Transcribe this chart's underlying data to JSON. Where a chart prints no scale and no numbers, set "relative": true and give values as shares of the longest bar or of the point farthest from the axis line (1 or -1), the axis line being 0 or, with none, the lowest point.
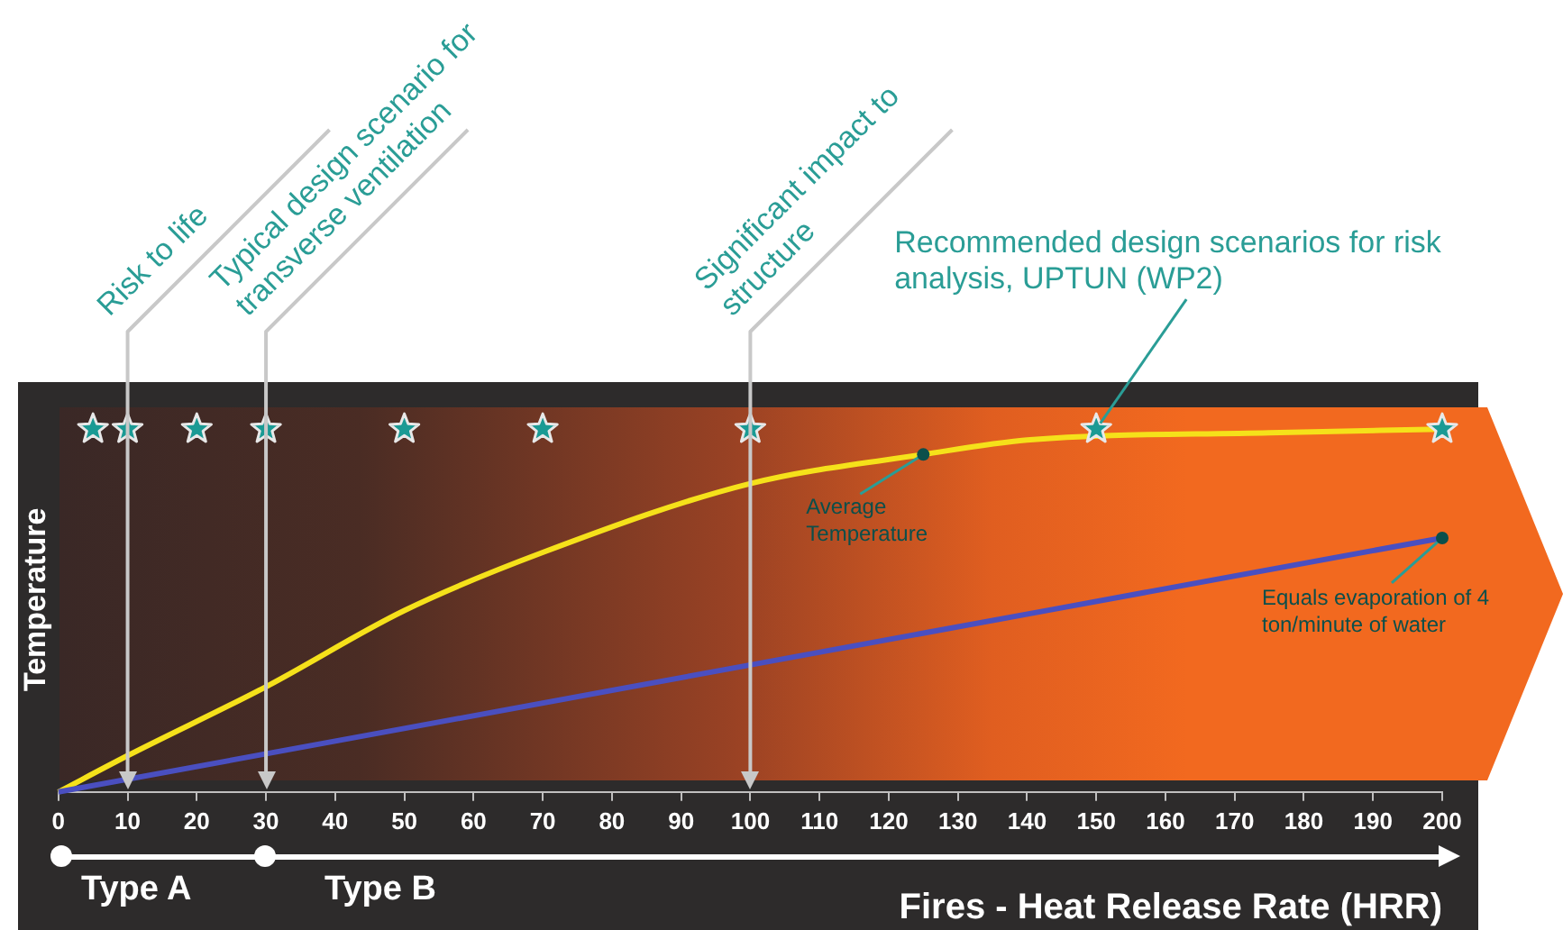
{
  "chart_data": {
    "type": "line",
    "relative": true,
    "xlabel": "Fires - Heat Release Rate (HRR)",
    "ylabel": "Temperature",
    "xlim": [
      0,
      200
    ],
    "xticks": [
      0,
      10,
      20,
      30,
      40,
      50,
      60,
      70,
      80,
      90,
      100,
      110,
      120,
      130,
      140,
      150,
      160,
      170,
      180,
      190,
      200
    ],
    "tick_labels": "x",
    "grid": false,
    "legend": false,
    "line_style": "solid",
    "series": [
      {
        "color": "#f5e11a",
        "marker": "none",
        "x": [
          0,
          10,
          30,
          50,
          70,
          100,
          125,
          140,
          175,
          200
        ],
        "values": [
          0,
          0.1,
          0.29,
          0.5,
          0.66,
          0.85,
          0.93,
          0.97,
          0.99,
          1
        ]
      },
      {
        "color": "#4a4fc0",
        "marker": "none",
        "x": [
          0,
          100,
          200
        ],
        "values": [
          0,
          0.35,
          0.7
        ]
      },
      {
        "type": "scatter",
        "color": "#1a9a94",
        "marker": "star",
        "x": [
          5,
          10,
          20,
          30,
          50,
          70,
          100,
          150,
          200
        ],
        "values": [
          1,
          1,
          1,
          1,
          1,
          1,
          1,
          1,
          1
        ]
      }
    ],
    "ref_lines": [
      {
        "axis": "x",
        "value": 10,
        "label": "Risk to life",
        "color": "#c8c8c8"
      },
      {
        "axis": "x",
        "value": 30,
        "label": "Typical design scenario for transverse ventilation",
        "color": "#c8c8c8"
      },
      {
        "axis": "x",
        "value": 100,
        "label": "Significant impact to structure",
        "color": "#c8c8c8"
      }
    ],
    "annotations": [
      {
        "text": "Recommended design scenarios for risk analysis, UPTUN (WP2)",
        "x": 150,
        "y": 1
      },
      {
        "text": "Average Temperature",
        "x": 125,
        "y": 0.93
      },
      {
        "text": "Equals evaporation of 4 ton/minute of water",
        "x": 200,
        "y": 0.7
      },
      "Type A",
      "Type B"
    ]
  }
}
